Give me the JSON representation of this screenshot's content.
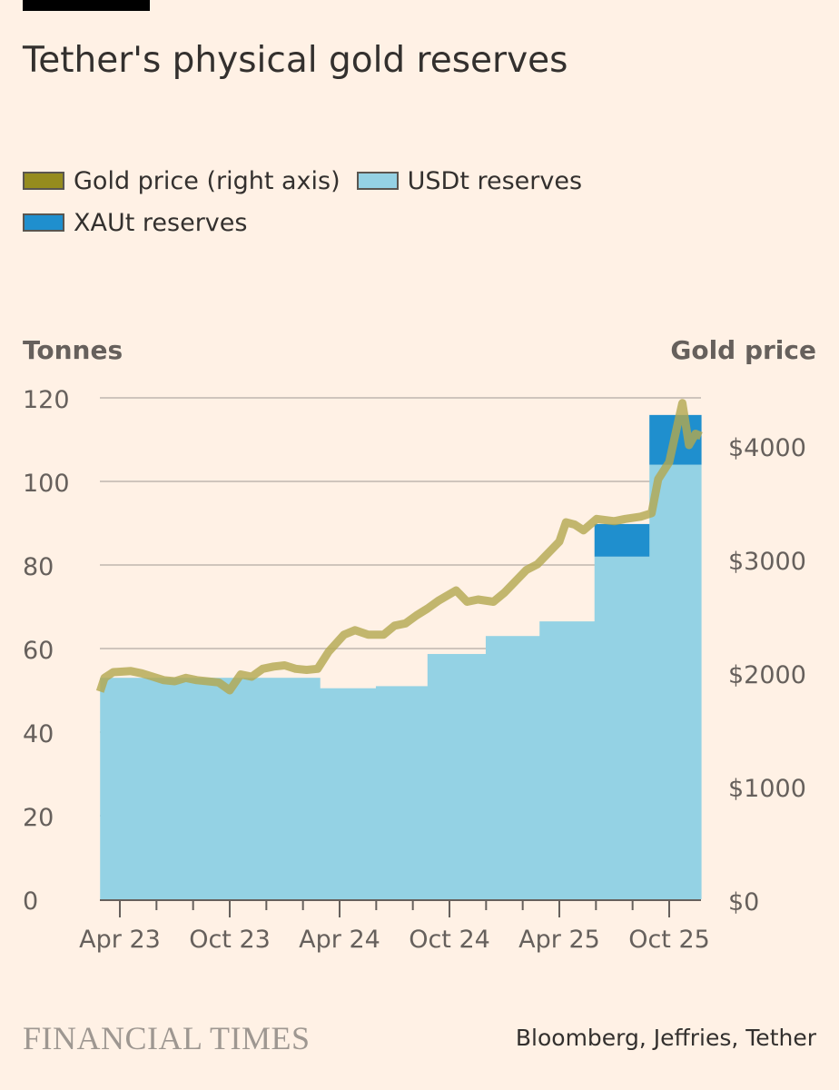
{
  "title": "Tether's physical gold reserves",
  "legend": [
    {
      "label": "Gold price (right axis)",
      "color": "#958c1e"
    },
    {
      "label": "USDt reserves",
      "color": "#94d2e4"
    },
    {
      "label": "XAUt reserves",
      "color": "#1f8fce"
    }
  ],
  "footer": {
    "brand": "FINANCIAL TIMES",
    "source": "Bloomberg, Jeffries, Tether"
  },
  "chart_data": {
    "type": "area",
    "title": "Tether's physical gold reserves",
    "ylabel_left": "Tonnes",
    "ylabel_right": "Gold price",
    "ylim_left": [
      0,
      120
    ],
    "ylim_right": [
      0,
      4400
    ],
    "left_ticks": [
      0,
      20,
      40,
      60,
      80,
      100,
      120
    ],
    "left_tick_labels": [
      "0",
      "20",
      "40",
      "60",
      "80",
      "100",
      "120"
    ],
    "right_ticks": [
      0,
      1000,
      2000,
      3000,
      4000
    ],
    "right_tick_labels": [
      "$0",
      "$1000",
      "$2000",
      "$3000",
      "$4000"
    ],
    "x_range": [
      2023.16,
      2025.895
    ],
    "x_ticks": [
      2023.25,
      2023.75,
      2024.25,
      2024.75,
      2025.25,
      2025.75
    ],
    "x_tick_labels": [
      "Apr 23",
      "Oct 23",
      "Apr 24",
      "Oct 24",
      "Apr 25",
      "Oct 25"
    ],
    "grid": true,
    "steps": [
      {
        "start": 2023.16,
        "end": 2024.16,
        "usdt": 53,
        "xaut": 0
      },
      {
        "start": 2024.16,
        "end": 2024.415,
        "usdt": 50.5,
        "xaut": 0
      },
      {
        "start": 2024.415,
        "end": 2024.65,
        "usdt": 51,
        "xaut": 0
      },
      {
        "start": 2024.65,
        "end": 2024.915,
        "usdt": 58.7,
        "xaut": 0
      },
      {
        "start": 2024.915,
        "end": 2025.16,
        "usdt": 63,
        "xaut": 0
      },
      {
        "start": 2025.16,
        "end": 2025.41,
        "usdt": 66.5,
        "xaut": 0
      },
      {
        "start": 2025.41,
        "end": 2025.66,
        "usdt": 82,
        "xaut": 7.8
      },
      {
        "start": 2025.66,
        "end": 2025.895,
        "usdt": 104,
        "xaut": 11.9
      }
    ],
    "gold_price": [
      [
        2023.16,
        1830
      ],
      [
        2023.18,
        1950
      ],
      [
        2023.22,
        2000
      ],
      [
        2023.3,
        2010
      ],
      [
        2023.35,
        1990
      ],
      [
        2023.4,
        1960
      ],
      [
        2023.45,
        1930
      ],
      [
        2023.5,
        1920
      ],
      [
        2023.55,
        1950
      ],
      [
        2023.6,
        1930
      ],
      [
        2023.7,
        1910
      ],
      [
        2023.75,
        1840
      ],
      [
        2023.8,
        1980
      ],
      [
        2023.85,
        1960
      ],
      [
        2023.9,
        2030
      ],
      [
        2023.95,
        2050
      ],
      [
        2024.0,
        2060
      ],
      [
        2024.05,
        2030
      ],
      [
        2024.1,
        2020
      ],
      [
        2024.15,
        2030
      ],
      [
        2024.2,
        2180
      ],
      [
        2024.27,
        2330
      ],
      [
        2024.32,
        2370
      ],
      [
        2024.38,
        2330
      ],
      [
        2024.45,
        2330
      ],
      [
        2024.5,
        2410
      ],
      [
        2024.55,
        2430
      ],
      [
        2024.6,
        2500
      ],
      [
        2024.65,
        2560
      ],
      [
        2024.7,
        2630
      ],
      [
        2024.78,
        2720
      ],
      [
        2024.83,
        2620
      ],
      [
        2024.88,
        2640
      ],
      [
        2024.95,
        2620
      ],
      [
        2025.0,
        2700
      ],
      [
        2025.05,
        2800
      ],
      [
        2025.1,
        2900
      ],
      [
        2025.15,
        2950
      ],
      [
        2025.2,
        3050
      ],
      [
        2025.25,
        3150
      ],
      [
        2025.28,
        3320
      ],
      [
        2025.32,
        3300
      ],
      [
        2025.36,
        3250
      ],
      [
        2025.42,
        3350
      ],
      [
        2025.5,
        3330
      ],
      [
        2025.55,
        3350
      ],
      [
        2025.62,
        3370
      ],
      [
        2025.67,
        3400
      ],
      [
        2025.7,
        3700
      ],
      [
        2025.75,
        3850
      ],
      [
        2025.79,
        4200
      ],
      [
        2025.81,
        4370
      ],
      [
        2025.84,
        4000
      ],
      [
        2025.87,
        4100
      ],
      [
        2025.895,
        4080
      ]
    ]
  }
}
